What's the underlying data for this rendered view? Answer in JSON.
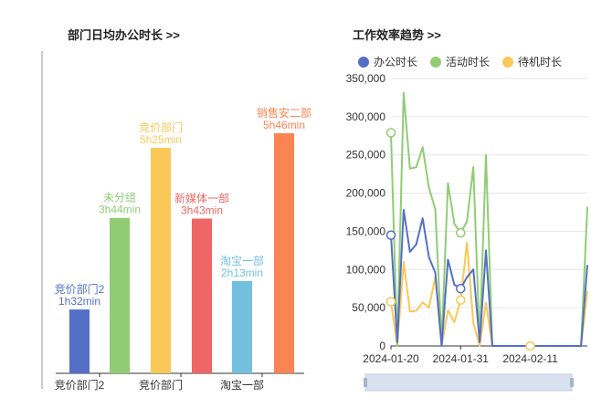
{
  "top_cut_text": "",
  "panels": {
    "left_title": "部门日均办公时长 >>",
    "right_title": "工作效率趋势 >>"
  },
  "colors": {
    "axis": "#333333",
    "grid": "#e6e6e6",
    "office": "#5470c6",
    "active": "#91cc75",
    "idle": "#fac858",
    "bars": [
      "#5470c6",
      "#91cc75",
      "#fac858",
      "#ee6666",
      "#73c0de",
      "#fc8452"
    ]
  },
  "chart_data": [
    {
      "type": "bar",
      "title": "部门日均办公时长 >>",
      "categories": [
        "竞价部门2",
        "未分组",
        "竞价部门",
        "新媒体一部",
        "淘宝一部",
        "销售安二部"
      ],
      "axis_tick_labels": [
        "竞价部门2",
        "竞价部门",
        "淘宝一部"
      ],
      "values_minutes": [
        92,
        224,
        325,
        223,
        133,
        346
      ],
      "data_labels": [
        "1h32min",
        "3h44min",
        "5h25min",
        "3h43min",
        "2h13min",
        "5h46min"
      ],
      "ylim": [
        0,
        360
      ],
      "grid": false
    },
    {
      "type": "line",
      "title": "工作效率趋势 >>",
      "x_tick_labels": [
        "2024-01-20",
        "2024-01-31",
        "2024-02-11"
      ],
      "x": [
        "2024-01-20",
        "2024-01-21",
        "2024-01-22",
        "2024-01-23",
        "2024-01-24",
        "2024-01-25",
        "2024-01-26",
        "2024-01-27",
        "2024-01-28",
        "2024-01-29",
        "2024-01-30",
        "2024-01-31",
        "2024-02-01",
        "2024-02-02",
        "2024-02-03",
        "2024-02-04",
        "2024-02-05",
        "2024-02-06",
        "2024-02-07",
        "2024-02-08",
        "2024-02-09",
        "2024-02-10",
        "2024-02-11",
        "2024-02-12",
        "2024-02-13",
        "2024-02-14",
        "2024-02-15",
        "2024-02-16",
        "2024-02-17",
        "2024-02-18",
        "2024-02-19",
        "2024-02-20"
      ],
      "y_ticks": [
        "0",
        "50,000",
        "100,000",
        "150,000",
        "200,000",
        "250,000",
        "300,000",
        "350,000"
      ],
      "ylim": [
        0,
        350000
      ],
      "grid": true,
      "legend_position": "top",
      "series": [
        {
          "name": "办公时长",
          "values": [
            145000,
            5000,
            178000,
            123000,
            133000,
            167000,
            116000,
            96000,
            0,
            113000,
            80000,
            75000,
            90000,
            100000,
            5000,
            125000,
            0,
            0,
            0,
            0,
            0,
            0,
            0,
            0,
            0,
            0,
            0,
            0,
            0,
            0,
            0,
            106000
          ]
        },
        {
          "name": "活动时长",
          "values": [
            279000,
            0,
            331000,
            232000,
            234000,
            260000,
            207000,
            179000,
            5000,
            213000,
            160000,
            148000,
            163000,
            234000,
            5000,
            250000,
            0,
            0,
            0,
            0,
            0,
            0,
            0,
            0,
            0,
            0,
            0,
            0,
            0,
            0,
            0,
            182000
          ]
        },
        {
          "name": "待机时长",
          "values": [
            58000,
            0,
            110000,
            45000,
            46000,
            57000,
            50000,
            90000,
            0,
            47000,
            31000,
            60000,
            135000,
            30000,
            0,
            57000,
            0,
            0,
            0,
            0,
            0,
            0,
            0,
            0,
            0,
            0,
            0,
            0,
            0,
            0,
            0,
            72000
          ]
        }
      ]
    }
  ]
}
